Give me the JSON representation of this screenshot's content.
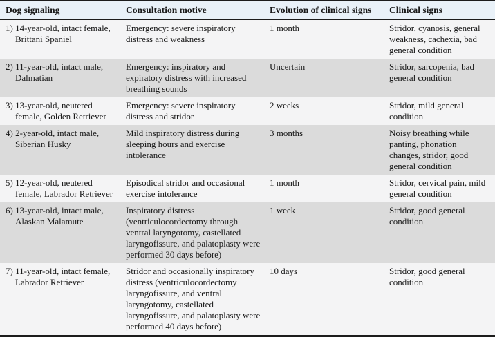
{
  "colors": {
    "header_bg": "#e9f1f8",
    "row_light_bg": "#f4f4f5",
    "row_dark_bg": "#dbdbdb",
    "border": "#1c1c1c",
    "text": "#1a1a1a"
  },
  "table": {
    "columns": [
      "Dog signaling",
      "Consultation motive",
      "Evolution of clinical signs",
      "Clinical signs"
    ],
    "rows": [
      {
        "cells": [
          "1) 14-year-old, intact female, Brittani Spaniel",
          "Emergency: severe inspiratory distress and weakness",
          "1 month",
          "Stridor, cyanosis, general weakness, cachexia, bad general condition"
        ]
      },
      {
        "cells": [
          "2) 11-year-old, intact male, Dalmatian",
          "Emergency: inspiratory and expiratory distress with increased breathing sounds",
          "Uncertain",
          "Stridor, sarcopenia, bad general condition"
        ]
      },
      {
        "cells": [
          "3) 13-year-old, neutered female, Golden Retriever",
          "Emergency: severe inspiratory distress and stridor",
          "2 weeks",
          "Stridor, mild general condition"
        ]
      },
      {
        "cells": [
          "4) 2-year-old, intact male, Siberian Husky",
          "Mild inspiratory distress during sleeping hours and exercise intolerance",
          "3 months",
          "Noisy breathing while panting, phonation changes, stridor, good general condition"
        ]
      },
      {
        "cells": [
          "5) 12-year-old, neutered female, Labrador Retriever",
          "Episodical stridor and occasional exercise intolerance",
          "1 month",
          "Stridor, cervical pain, mild general condition"
        ]
      },
      {
        "cells": [
          "6) 13-year-old, intact male, Alaskan Malamute",
          "Inspiratory distress (ventriculocordectomy through ventral laryngotomy, castellated laryngofissure, and palatoplasty were performed 30 days before)",
          "1 week",
          "Stridor, good general condition"
        ]
      },
      {
        "cells": [
          "7) 11-year-old, intact female, Labrador Retriever",
          "Stridor and occasionally inspiratory distress (ventriculocordectomy laryngofissure, and ventral laryngotomy, castellated laryngofissure, and palatoplasty were performed 40 days before)",
          "10 days",
          "Stridor, good general condition"
        ]
      }
    ]
  }
}
